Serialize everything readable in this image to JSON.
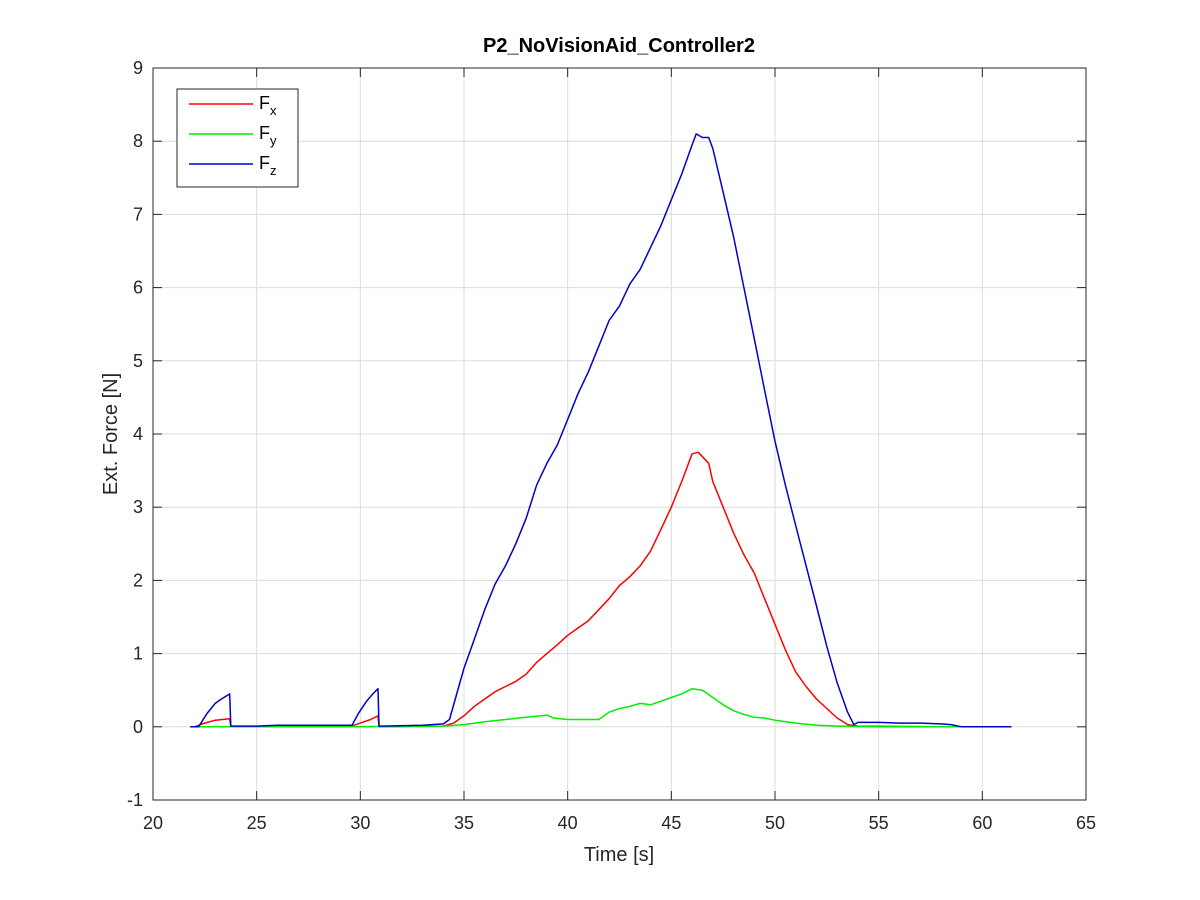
{
  "chart_data": {
    "type": "line",
    "title": "P2_NoVisionAid_Controller2",
    "xlabel": "Time [s]",
    "ylabel": "Ext. Force [N]",
    "xlim": [
      20,
      65
    ],
    "ylim": [
      -1,
      9
    ],
    "xticks": [
      20,
      25,
      30,
      35,
      40,
      45,
      50,
      55,
      60,
      65
    ],
    "yticks": [
      -1,
      0,
      1,
      2,
      3,
      4,
      5,
      6,
      7,
      8,
      9
    ],
    "grid": true,
    "legend_position": "top-left",
    "series": [
      {
        "name": "F",
        "subscript": "x",
        "color": "#ff0000",
        "points": [
          [
            21.8,
            0
          ],
          [
            22.0,
            0
          ],
          [
            22.5,
            0.05
          ],
          [
            23.0,
            0.09
          ],
          [
            23.7,
            0.11
          ],
          [
            23.75,
            0
          ],
          [
            29.5,
            0
          ],
          [
            30.0,
            0.05
          ],
          [
            30.5,
            0.1
          ],
          [
            30.85,
            0.15
          ],
          [
            30.9,
            0
          ],
          [
            34.0,
            0.01
          ],
          [
            34.5,
            0.05
          ],
          [
            35.0,
            0.15
          ],
          [
            35.5,
            0.28
          ],
          [
            36.0,
            0.38
          ],
          [
            36.5,
            0.48
          ],
          [
            37.0,
            0.55
          ],
          [
            37.5,
            0.62
          ],
          [
            38.0,
            0.72
          ],
          [
            38.5,
            0.88
          ],
          [
            39.0,
            1.0
          ],
          [
            39.5,
            1.12
          ],
          [
            40.0,
            1.25
          ],
          [
            40.5,
            1.35
          ],
          [
            41.0,
            1.45
          ],
          [
            41.5,
            1.6
          ],
          [
            42.0,
            1.75
          ],
          [
            42.5,
            1.93
          ],
          [
            43.0,
            2.05
          ],
          [
            43.5,
            2.2
          ],
          [
            44.0,
            2.4
          ],
          [
            44.5,
            2.7
          ],
          [
            45.0,
            3.0
          ],
          [
            45.5,
            3.35
          ],
          [
            46.0,
            3.73
          ],
          [
            46.3,
            3.75
          ],
          [
            46.8,
            3.6
          ],
          [
            47.0,
            3.35
          ],
          [
            47.5,
            3.0
          ],
          [
            48.0,
            2.65
          ],
          [
            48.5,
            2.35
          ],
          [
            49.0,
            2.1
          ],
          [
            49.5,
            1.75
          ],
          [
            50.0,
            1.4
          ],
          [
            50.5,
            1.05
          ],
          [
            51.0,
            0.75
          ],
          [
            51.5,
            0.55
          ],
          [
            52.0,
            0.38
          ],
          [
            52.5,
            0.25
          ],
          [
            53.0,
            0.12
          ],
          [
            53.5,
            0.03
          ],
          [
            54.0,
            0.01
          ],
          [
            58.0,
            0.0
          ],
          [
            61.4,
            0.0
          ]
        ]
      },
      {
        "name": "F",
        "subscript": "y",
        "color": "#00ee00",
        "points": [
          [
            21.8,
            0
          ],
          [
            29.5,
            0
          ],
          [
            34.0,
            0.01
          ],
          [
            35.0,
            0.03
          ],
          [
            36.0,
            0.07
          ],
          [
            37.0,
            0.1
          ],
          [
            38.0,
            0.13
          ],
          [
            39.0,
            0.16
          ],
          [
            39.3,
            0.12
          ],
          [
            40.0,
            0.1
          ],
          [
            41.0,
            0.1
          ],
          [
            41.5,
            0.1
          ],
          [
            42.0,
            0.2
          ],
          [
            42.5,
            0.25
          ],
          [
            43.0,
            0.28
          ],
          [
            43.5,
            0.32
          ],
          [
            44.0,
            0.3
          ],
          [
            44.5,
            0.35
          ],
          [
            45.0,
            0.4
          ],
          [
            45.5,
            0.45
          ],
          [
            46.0,
            0.52
          ],
          [
            46.5,
            0.5
          ],
          [
            47.0,
            0.4
          ],
          [
            47.5,
            0.3
          ],
          [
            48.0,
            0.22
          ],
          [
            48.5,
            0.17
          ],
          [
            49.0,
            0.13
          ],
          [
            49.5,
            0.12
          ],
          [
            50.0,
            0.09
          ],
          [
            51.0,
            0.05
          ],
          [
            52.0,
            0.02
          ],
          [
            53.0,
            0.01
          ],
          [
            55.0,
            0.0
          ],
          [
            61.4,
            0.0
          ]
        ]
      },
      {
        "name": "F",
        "subscript": "z",
        "color": "#0000cc",
        "points": [
          [
            21.8,
            0
          ],
          [
            22.2,
            0.0
          ],
          [
            22.6,
            0.18
          ],
          [
            23.0,
            0.32
          ],
          [
            23.3,
            0.38
          ],
          [
            23.7,
            0.45
          ],
          [
            23.75,
            0.01
          ],
          [
            25.0,
            0.01
          ],
          [
            26.0,
            0.02
          ],
          [
            28.0,
            0.02
          ],
          [
            29.6,
            0.02
          ],
          [
            29.9,
            0.18
          ],
          [
            30.3,
            0.35
          ],
          [
            30.6,
            0.45
          ],
          [
            30.85,
            0.52
          ],
          [
            30.9,
            0.01
          ],
          [
            33.0,
            0.02
          ],
          [
            34.0,
            0.04
          ],
          [
            34.3,
            0.1
          ],
          [
            34.6,
            0.4
          ],
          [
            35.0,
            0.8
          ],
          [
            35.5,
            1.2
          ],
          [
            36.0,
            1.6
          ],
          [
            36.5,
            1.95
          ],
          [
            37.0,
            2.2
          ],
          [
            37.5,
            2.5
          ],
          [
            38.0,
            2.85
          ],
          [
            38.5,
            3.3
          ],
          [
            39.0,
            3.6
          ],
          [
            39.5,
            3.85
          ],
          [
            40.0,
            4.2
          ],
          [
            40.5,
            4.55
          ],
          [
            41.0,
            4.85
          ],
          [
            41.5,
            5.2
          ],
          [
            42.0,
            5.55
          ],
          [
            42.5,
            5.75
          ],
          [
            43.0,
            6.05
          ],
          [
            43.5,
            6.25
          ],
          [
            44.0,
            6.55
          ],
          [
            44.5,
            6.85
          ],
          [
            45.0,
            7.2
          ],
          [
            45.5,
            7.55
          ],
          [
            46.0,
            7.95
          ],
          [
            46.2,
            8.1
          ],
          [
            46.5,
            8.05
          ],
          [
            46.8,
            8.05
          ],
          [
            47.0,
            7.9
          ],
          [
            47.5,
            7.3
          ],
          [
            48.0,
            6.7
          ],
          [
            48.5,
            6.0
          ],
          [
            49.0,
            5.3
          ],
          [
            49.5,
            4.6
          ],
          [
            50.0,
            3.9
          ],
          [
            50.5,
            3.3
          ],
          [
            51.0,
            2.75
          ],
          [
            51.5,
            2.2
          ],
          [
            52.0,
            1.65
          ],
          [
            52.5,
            1.1
          ],
          [
            53.0,
            0.6
          ],
          [
            53.5,
            0.2
          ],
          [
            53.8,
            0.03
          ],
          [
            54.0,
            0.06
          ],
          [
            55.0,
            0.06
          ],
          [
            56.0,
            0.05
          ],
          [
            57.0,
            0.05
          ],
          [
            58.0,
            0.04
          ],
          [
            58.5,
            0.03
          ],
          [
            59.0,
            0.0
          ],
          [
            61.4,
            0.0
          ]
        ]
      }
    ]
  }
}
